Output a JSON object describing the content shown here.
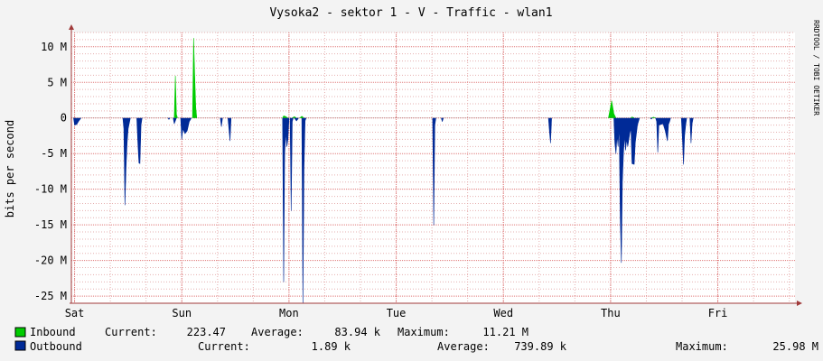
{
  "title": "Vysoka2 - sektor 1 - V - Traffic - wlan1",
  "watermark": "RRDTOOL / TOBI OETIKER",
  "colors": {
    "inbound": "#00CC00",
    "outbound": "#002A97",
    "inbound_legend": "#00CC00",
    "outbound_legend": "#002A97",
    "grid_minor": "#e6b0b0",
    "grid_major": "#e07a7a",
    "axis": "#a03a3a",
    "plot_bg": "#ffffff",
    "page_bg": "#f3f3f3"
  },
  "chart_data": {
    "type": "area",
    "title": "Vysoka2 - sektor 1 - V - Traffic - wlan1",
    "xlabel": "",
    "ylabel": "bits per second",
    "ylim": [
      -26000000,
      12000000
    ],
    "xlim": [
      -0.03,
      6.72
    ],
    "y_ticks": [
      {
        "value": 10000000,
        "label": "10 M"
      },
      {
        "value": 5000000,
        "label": "5 M"
      },
      {
        "value": 0,
        "label": "0"
      },
      {
        "value": -5000000,
        "label": "-5 M"
      },
      {
        "value": -10000000,
        "label": "-10 M"
      },
      {
        "value": -15000000,
        "label": "-15 M"
      },
      {
        "value": -20000000,
        "label": "-20 M"
      },
      {
        "value": -25000000,
        "label": "-25 M"
      }
    ],
    "x_ticks": [
      {
        "value": 0,
        "label": "Sat"
      },
      {
        "value": 1,
        "label": "Sun"
      },
      {
        "value": 2,
        "label": "Mon"
      },
      {
        "value": 3,
        "label": "Tue"
      },
      {
        "value": 4,
        "label": "Wed"
      },
      {
        "value": 5,
        "label": "Thu"
      },
      {
        "value": 6,
        "label": "Fri"
      }
    ],
    "grid": true,
    "series": [
      {
        "name": "Inbound",
        "values": [
          [
            0.93,
            0
          ],
          [
            0.94,
            5900000
          ],
          [
            0.95,
            500000
          ],
          [
            0.96,
            0
          ],
          [
            1.1,
            0
          ],
          [
            1.11,
            11200000
          ],
          [
            1.12,
            6000000
          ],
          [
            1.13,
            1500000
          ],
          [
            1.14,
            0
          ],
          [
            1.94,
            0
          ],
          [
            1.95,
            300000
          ],
          [
            1.97,
            200000
          ],
          [
            1.99,
            0
          ],
          [
            2.03,
            0
          ],
          [
            2.05,
            200000
          ],
          [
            2.07,
            0
          ],
          [
            2.1,
            0
          ],
          [
            2.12,
            250000
          ],
          [
            2.14,
            0
          ],
          [
            4.98,
            0
          ],
          [
            5.01,
            2400000
          ],
          [
            5.02,
            1500000
          ],
          [
            5.03,
            600000
          ],
          [
            5.05,
            0
          ],
          [
            5.19,
            0
          ],
          [
            5.2,
            150000
          ],
          [
            5.22,
            0
          ],
          [
            5.38,
            0
          ],
          [
            5.4,
            100000
          ],
          [
            5.42,
            0
          ]
        ]
      },
      {
        "name": "Outbound",
        "values": [
          [
            -0.01,
            0
          ],
          [
            0.0,
            -1000000
          ],
          [
            0.02,
            -900000
          ],
          [
            0.04,
            -400000
          ],
          [
            0.06,
            0
          ],
          [
            0.45,
            0
          ],
          [
            0.46,
            -1500000
          ],
          [
            0.47,
            -12200000
          ],
          [
            0.48,
            -7000000
          ],
          [
            0.49,
            -3500000
          ],
          [
            0.5,
            -1500000
          ],
          [
            0.52,
            0
          ],
          [
            0.58,
            0
          ],
          [
            0.59,
            -3500000
          ],
          [
            0.6,
            -6300000
          ],
          [
            0.61,
            -6400000
          ],
          [
            0.62,
            -1000000
          ],
          [
            0.63,
            0
          ],
          [
            0.87,
            0
          ],
          [
            0.88,
            -200000
          ],
          [
            0.89,
            0
          ],
          [
            0.92,
            0
          ],
          [
            0.93,
            -800000
          ],
          [
            0.94,
            -400000
          ],
          [
            0.95,
            0
          ],
          [
            0.99,
            0
          ],
          [
            1.0,
            -3000000
          ],
          [
            1.01,
            -1500000
          ],
          [
            1.03,
            -2200000
          ],
          [
            1.05,
            -1800000
          ],
          [
            1.07,
            -500000
          ],
          [
            1.09,
            0
          ],
          [
            1.36,
            0
          ],
          [
            1.37,
            -1200000
          ],
          [
            1.38,
            0
          ],
          [
            1.43,
            0
          ],
          [
            1.44,
            -1500000
          ],
          [
            1.45,
            -3200000
          ],
          [
            1.46,
            0
          ],
          [
            1.94,
            0
          ],
          [
            1.95,
            -23000000
          ],
          [
            1.96,
            -5000000
          ],
          [
            1.97,
            -2000000
          ],
          [
            1.98,
            -4000000
          ],
          [
            1.99,
            -3000000
          ],
          [
            2.0,
            0
          ],
          [
            2.01,
            0
          ],
          [
            2.02,
            -13000000
          ],
          [
            2.03,
            -500000
          ],
          [
            2.04,
            0
          ],
          [
            2.05,
            0
          ],
          [
            2.07,
            -400000
          ],
          [
            2.09,
            0
          ],
          [
            2.12,
            0
          ],
          [
            2.13,
            -26000000
          ],
          [
            2.14,
            -7000000
          ],
          [
            2.15,
            -400000
          ],
          [
            2.16,
            0
          ],
          [
            3.34,
            0
          ],
          [
            3.35,
            -15000000
          ],
          [
            3.36,
            -1000000
          ],
          [
            3.37,
            0
          ],
          [
            3.42,
            0
          ],
          [
            3.43,
            -500000
          ],
          [
            3.44,
            0
          ],
          [
            4.42,
            0
          ],
          [
            4.43,
            -2000000
          ],
          [
            4.44,
            -3500000
          ],
          [
            4.45,
            0
          ],
          [
            5.03,
            0
          ],
          [
            5.04,
            -3500000
          ],
          [
            5.05,
            -5000000
          ],
          [
            5.06,
            -2500000
          ],
          [
            5.07,
            -4000000
          ],
          [
            5.08,
            -1000000
          ],
          [
            5.09,
            -14000000
          ],
          [
            5.1,
            -20300000
          ],
          [
            5.11,
            -9000000
          ],
          [
            5.12,
            -5000000
          ],
          [
            5.13,
            -2500000
          ],
          [
            5.14,
            -4500000
          ],
          [
            5.15,
            -3000000
          ],
          [
            5.16,
            -4000000
          ],
          [
            5.18,
            -2000000
          ],
          [
            5.19,
            -1500000
          ],
          [
            5.2,
            -6400000
          ],
          [
            5.22,
            -6500000
          ],
          [
            5.23,
            -3500000
          ],
          [
            5.25,
            -1000000
          ],
          [
            5.27,
            0
          ],
          [
            5.37,
            0
          ],
          [
            5.38,
            -150000
          ],
          [
            5.39,
            0
          ],
          [
            5.42,
            0
          ],
          [
            5.43,
            -500000
          ],
          [
            5.44,
            -4800000
          ],
          [
            5.45,
            -1000000
          ],
          [
            5.47,
            -900000
          ],
          [
            5.49,
            -800000
          ],
          [
            5.51,
            -1800000
          ],
          [
            5.53,
            -3200000
          ],
          [
            5.54,
            -900000
          ],
          [
            5.55,
            -500000
          ],
          [
            5.56,
            0
          ],
          [
            5.66,
            0
          ],
          [
            5.67,
            -3000000
          ],
          [
            5.68,
            -6500000
          ],
          [
            5.69,
            -2500000
          ],
          [
            5.7,
            -1000000
          ],
          [
            5.71,
            0
          ],
          [
            5.74,
            0
          ],
          [
            5.75,
            -3500000
          ],
          [
            5.76,
            -800000
          ],
          [
            5.77,
            0
          ]
        ]
      }
    ]
  },
  "legend": {
    "inbound": {
      "name": "Inbound",
      "current_label": "Current:",
      "current": "223.47",
      "average_label": "Average:",
      "average": "83.94 k",
      "maximum_label": "Maximum:",
      "maximum": "11.21 M"
    },
    "outbound": {
      "name": "Outbound",
      "current_label": "Current:",
      "current": "1.89 k",
      "average_label": "Average:",
      "average": "739.89 k",
      "maximum_label": "Maximum:",
      "maximum": "25.98 M"
    }
  }
}
